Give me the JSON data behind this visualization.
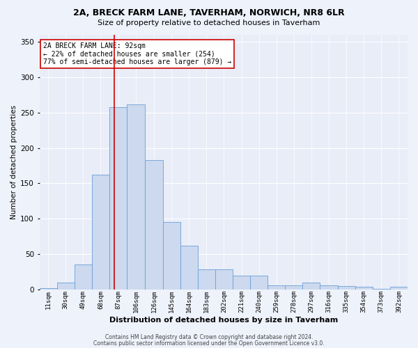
{
  "title": "2A, BRECK FARM LANE, TAVERHAM, NORWICH, NR8 6LR",
  "subtitle": "Size of property relative to detached houses in Taverham",
  "xlabel": "Distribution of detached houses by size in Taverham",
  "ylabel": "Number of detached properties",
  "bar_color": "#ccd9ee",
  "bar_edge_color": "#6a9fd8",
  "bin_labels": [
    "11sqm",
    "30sqm",
    "49sqm",
    "68sqm",
    "87sqm",
    "106sqm",
    "126sqm",
    "145sqm",
    "164sqm",
    "183sqm",
    "202sqm",
    "221sqm",
    "240sqm",
    "259sqm",
    "278sqm",
    "297sqm",
    "316sqm",
    "335sqm",
    "354sqm",
    "373sqm",
    "392sqm"
  ],
  "bar_heights": [
    2,
    10,
    35,
    162,
    258,
    262,
    183,
    95,
    62,
    28,
    28,
    19,
    19,
    6,
    6,
    10,
    6,
    5,
    4,
    1,
    4
  ],
  "bin_edges": [
    11,
    30,
    49,
    68,
    87,
    106,
    126,
    145,
    164,
    183,
    202,
    221,
    240,
    259,
    278,
    297,
    316,
    335,
    354,
    373,
    392,
    411
  ],
  "ylim": [
    0,
    360
  ],
  "yticks": [
    0,
    50,
    100,
    150,
    200,
    250,
    300,
    350
  ],
  "vline_x": 92,
  "vline_color": "#cc0000",
  "annotation_line1": "2A BRECK FARM LANE: 92sqm",
  "annotation_line2": "← 22% of detached houses are smaller (254)",
  "annotation_line3": "77% of semi-detached houses are larger (879) →",
  "annotation_box_color": "#ffffff",
  "annotation_box_edge": "#cc0000",
  "footer1": "Contains HM Land Registry data © Crown copyright and database right 2024.",
  "footer2": "Contains public sector information licensed under the Open Government Licence v3.0.",
  "background_color": "#eef2fb",
  "axes_background": "#e8edf8",
  "grid_color": "#ffffff",
  "title_fontsize": 9,
  "subtitle_fontsize": 8,
  "ylabel_fontsize": 7.5,
  "xlabel_fontsize": 8,
  "ytick_fontsize": 7.5,
  "xtick_fontsize": 6.5,
  "annot_fontsize": 7,
  "footer_fontsize": 5.5
}
